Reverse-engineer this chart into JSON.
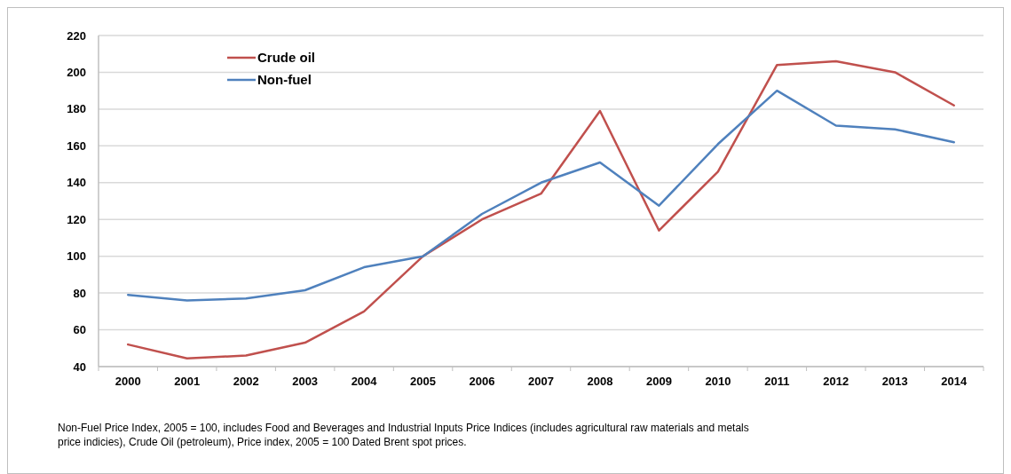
{
  "chart_data": {
    "type": "line",
    "categories": [
      "2000",
      "2001",
      "2002",
      "2003",
      "2004",
      "2005",
      "2006",
      "2007",
      "2008",
      "2009",
      "2010",
      "2011",
      "2012",
      "2013",
      "2014"
    ],
    "series": [
      {
        "name": "Crude oil",
        "color": "#c0504d",
        "values": [
          52,
          44.5,
          46,
          53,
          70,
          100,
          120,
          134,
          179,
          114,
          146,
          204,
          206,
          200,
          182
        ]
      },
      {
        "name": "Non-fuel",
        "color": "#4f81bd",
        "values": [
          79,
          76,
          77,
          81.5,
          94,
          100,
          123,
          140,
          151,
          127.5,
          161,
          190,
          171,
          169,
          162
        ]
      }
    ],
    "ylim": [
      40,
      220
    ],
    "yticks": [
      40,
      60,
      80,
      100,
      120,
      140,
      160,
      180,
      200,
      220
    ],
    "grid": "y",
    "legend": "top left",
    "marker": "none",
    "line_style": "solid",
    "annotations": [
      "Non-Fuel Price Index, 2005 = 100, includes Food and Beverages and Industrial Inputs Price Indices (includes agricultural raw materials and metals price indicies), Crude Oil (petroleum), Price index, 2005 = 100 Dated Brent spot prices."
    ]
  }
}
